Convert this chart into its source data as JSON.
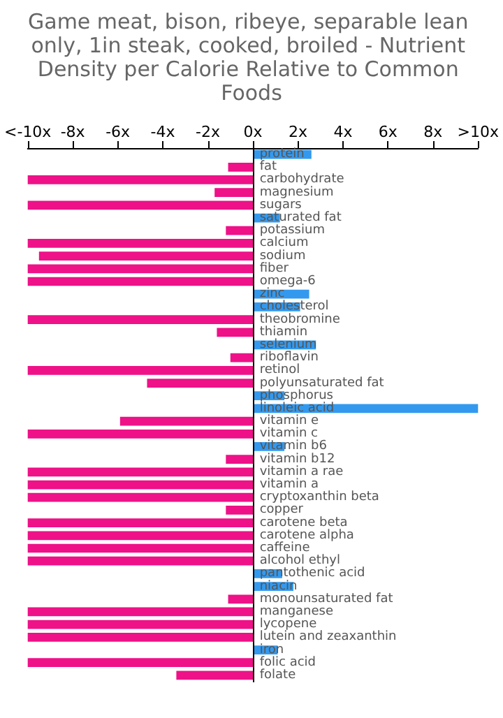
{
  "chart_data": {
    "type": "bar",
    "orientation": "horizontal",
    "title": "Game meat, bison, ribeye, separable lean only, 1in steak, cooked, broiled - Nutrient Density per Calorie Relative to Common Foods",
    "categories": [
      "protein",
      "fat",
      "carbohydrate",
      "magnesium",
      "sugars",
      "saturated fat",
      "potassium",
      "calcium",
      "sodium",
      "fiber",
      "omega-6",
      "zinc",
      "cholesterol",
      "theobromine",
      "thiamin",
      "selenium",
      "riboflavin",
      "retinol",
      "polyunsaturated fat",
      "phosphorus",
      "linoleic acid",
      "vitamin e",
      "vitamin c",
      "vitamin b6",
      "vitamin b12",
      "vitamin a rae",
      "vitamin a",
      "cryptoxanthin beta",
      "copper",
      "carotene beta",
      "carotene alpha",
      "caffeine",
      "alcohol ethyl",
      "pantothenic acid",
      "niacin",
      "monounsaturated fat",
      "manganese",
      "lycopene",
      "lutein and zeaxanthin",
      "iron",
      "folic acid",
      "folate"
    ],
    "values": [
      2.6,
      -1.1,
      -10,
      -1.7,
      -10,
      1.2,
      -1.2,
      -10,
      -9.5,
      -10,
      -10,
      2.5,
      2.1,
      -10,
      -1.6,
      2.8,
      -1.0,
      -10,
      -4.7,
      1.4,
      10,
      -5.9,
      -10,
      1.4,
      -1.2,
      -10,
      -10,
      -10,
      -1.2,
      -10,
      -10,
      -10,
      -10,
      1.3,
      1.8,
      -1.1,
      -10,
      -10,
      -10,
      1.1,
      -10,
      -3.4
    ],
    "colors": [
      "#3399ee",
      "#ee1188",
      "#ee1188",
      "#ee1188",
      "#ee1188",
      "#3399ee",
      "#ee1188",
      "#ee1188",
      "#ee1188",
      "#ee1188",
      "#ee1188",
      "#3399ee",
      "#3399ee",
      "#ee1188",
      "#ee1188",
      "#3399ee",
      "#ee1188",
      "#ee1188",
      "#ee1188",
      "#3399ee",
      "#3399ee",
      "#ee1188",
      "#ee1188",
      "#3399ee",
      "#ee1188",
      "#ee1188",
      "#ee1188",
      "#ee1188",
      "#ee1188",
      "#ee1188",
      "#ee1188",
      "#ee1188",
      "#ee1188",
      "#3399ee",
      "#3399ee",
      "#ee1188",
      "#ee1188",
      "#ee1188",
      "#ee1188",
      "#3399ee",
      "#ee1188",
      "#ee1188"
    ],
    "xlim": [
      -10,
      10
    ],
    "xticks": [
      {
        "value": -10,
        "label": "<-10x"
      },
      {
        "value": -8,
        "label": "-8x"
      },
      {
        "value": -6,
        "label": "-6x"
      },
      {
        "value": -4,
        "label": "-4x"
      },
      {
        "value": -2,
        "label": "-2x"
      },
      {
        "value": 0,
        "label": "0x"
      },
      {
        "value": 2,
        "label": "2x"
      },
      {
        "value": 4,
        "label": "4x"
      },
      {
        "value": 6,
        "label": "6x"
      },
      {
        "value": 8,
        "label": "8x"
      },
      {
        "value": 10,
        "label": ">10x"
      }
    ],
    "grid": false
  }
}
